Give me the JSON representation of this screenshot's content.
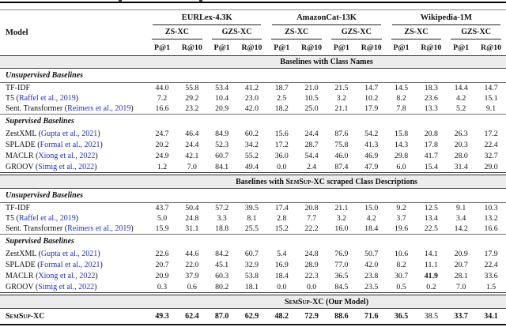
{
  "colors": {
    "citation_blue": "#2230c9",
    "band_bg": "#ececec",
    "rule_black": "#000000"
  },
  "header": {
    "model_col": "Model",
    "datasets": [
      "EURLex-4.3K",
      "AmazonCat-13K",
      "Wikipedia-1M"
    ],
    "settings": [
      "ZS-XC",
      "GZS-XC"
    ],
    "metrics": [
      "P@1",
      "R@10"
    ]
  },
  "sections": [
    {
      "band": {
        "prefix": "Baselines with Class Names",
        "brand": "",
        "suffix": ""
      },
      "double_rule_top": false,
      "groups": [
        {
          "heading": "Unsupervised Baselines",
          "rule_above": false,
          "rule_below": true,
          "rows": [
            {
              "name": "TF-IDF",
              "cite": null,
              "values": [
                "44.0",
                "55.8",
                "53.4",
                "41.2",
                "18.7",
                "21.0",
                "21.5",
                "14.7",
                "14.5",
                "18.3",
                "14.4",
                "14.7"
              ],
              "bold": []
            },
            {
              "name": "T5",
              "cite": "Raffel et al., 2019",
              "values": [
                "7.2",
                "29.2",
                "10.4",
                "23.0",
                "2.5",
                "10.5",
                "3.2",
                "10.2",
                "8.2",
                "23.6",
                "4.2",
                "15.1"
              ],
              "bold": []
            },
            {
              "name": "Sent. Transformer",
              "cite": "Reimers et al., 2019",
              "values": [
                "16.6",
                "23.2",
                "20.9",
                "42.0",
                "18.2",
                "25.0",
                "21.1",
                "17.9",
                "7.8",
                "13.3",
                "5.2",
                "9.1"
              ],
              "bold": []
            }
          ]
        },
        {
          "heading": "Supervised Baselines",
          "rule_above": true,
          "rule_below": false,
          "rows": [
            {
              "name": "ZestXML",
              "cite": "Gupta et al., 2021",
              "values": [
                "24.7",
                "46.4",
                "84.9",
                "60.2",
                "15.6",
                "24.4",
                "87.6",
                "54.2",
                "15.8",
                "20.8",
                "26.3",
                "17.2"
              ],
              "bold": []
            },
            {
              "name": "SPLADE",
              "cite": "Formal et al., 2021",
              "values": [
                "20.2",
                "24.4",
                "52.3",
                "34.2",
                "17.2",
                "28.7",
                "75.8",
                "41.3",
                "14.3",
                "17.8",
                "20.3",
                "22.4"
              ],
              "bold": []
            },
            {
              "name": "MACLR",
              "cite": "Xiong et al., 2022",
              "values": [
                "24.9",
                "42.1",
                "60.7",
                "55.2",
                "36.0",
                "54.4",
                "46.0",
                "46.9",
                "29.8",
                "41.7",
                "28.0",
                "32.7"
              ],
              "bold": []
            },
            {
              "name": "GROOV",
              "cite": "Simig et al., 2022",
              "values": [
                "1.2",
                "7.0",
                "84.1",
                "49.4",
                "0.0",
                "2.4",
                "87.4",
                "47.9",
                "6.0",
                "15.4",
                "31.4",
                "29.0"
              ],
              "bold": []
            }
          ]
        }
      ]
    },
    {
      "band": {
        "prefix": "Baselines with ",
        "brand": "SemSup-XC",
        "suffix": " scraped Class Descriptions"
      },
      "double_rule_top": true,
      "groups": [
        {
          "heading": "Unsupervised Baselines",
          "rule_above": false,
          "rule_below": true,
          "rows": [
            {
              "name": "TF-IDF",
              "cite": null,
              "values": [
                "43.7",
                "50.4",
                "57.2",
                "39.5",
                "17.4",
                "20.8",
                "21.1",
                "15.0",
                "9.2",
                "12.5",
                "9.1",
                "10.3"
              ],
              "bold": []
            },
            {
              "name": "T5",
              "cite": "Raffel et al., 2019",
              "values": [
                "5.0",
                "24.8",
                "3.3",
                "8.1",
                "2.8",
                "7.7",
                "3.2",
                "4.2",
                "3.7",
                "13.4",
                "3.4",
                "13.2"
              ],
              "bold": []
            },
            {
              "name": "Sent. Transformer",
              "cite": "Reimers et al., 2019",
              "values": [
                "15.9",
                "31.1",
                "18.8",
                "25.5",
                "15.2",
                "22.2",
                "16.0",
                "18.4",
                "19.6",
                "22.5",
                "14.2",
                "16.6"
              ],
              "bold": []
            }
          ]
        },
        {
          "heading": "Supervised Baselines",
          "rule_above": true,
          "rule_below": false,
          "rows": [
            {
              "name": "ZestXML",
              "cite": "Gupta et al., 2021",
              "values": [
                "22.6",
                "44.6",
                "84.2",
                "60.7",
                "5.4",
                "24.8",
                "76.9",
                "50.7",
                "10.6",
                "14.1",
                "20.9",
                "17.9"
              ],
              "bold": []
            },
            {
              "name": "SPLADE",
              "cite": "Formal et al., 2021",
              "values": [
                "20.7",
                "22.0",
                "45.1",
                "32.9",
                "16.9",
                "28.9",
                "77.0",
                "42.0",
                "8.2",
                "11.1",
                "20.7",
                "22.4"
              ],
              "bold": []
            },
            {
              "name": "MACLR",
              "cite": "Xiong et al., 2022",
              "values": [
                "20.9",
                "37.9",
                "60.3",
                "53.8",
                "18.4",
                "22.3",
                "36.5",
                "23.8",
                "30.7",
                "41.9",
                "28.1",
                "33.6"
              ],
              "bold": [
                9
              ]
            },
            {
              "name": "GROOV",
              "cite": "Simig et al., 2022",
              "values": [
                "0.3",
                "0.6",
                "80.2",
                "18.1",
                "0.0",
                "0.0",
                "84.5",
                "23.5",
                "0.5",
                "0.2",
                "7.0",
                "1.5"
              ],
              "bold": []
            }
          ]
        }
      ]
    }
  ],
  "final": {
    "band": {
      "prefix": "",
      "brand": "SemSup-XC",
      "suffix": " (Our Model)"
    },
    "double_rule_top": true,
    "row": {
      "name_brand": "SemSup-XC",
      "values": [
        "49.3",
        "62.4",
        "87.0",
        "62.9",
        "48.2",
        "72.9",
        "88.6",
        "71.6",
        "36.5",
        "38.5",
        "33.7",
        "34.1"
      ],
      "bold": [
        0,
        1,
        2,
        3,
        4,
        5,
        6,
        7,
        8,
        10,
        11
      ]
    }
  }
}
